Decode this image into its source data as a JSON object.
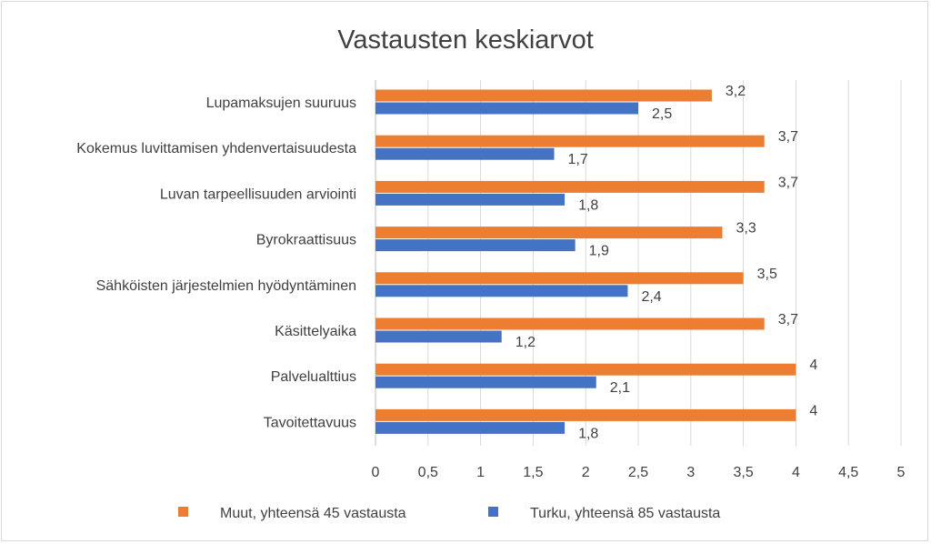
{
  "chart_data": {
    "type": "bar",
    "orientation": "horizontal",
    "title": "Vastausten keskiarvot",
    "categories": [
      "Lupamaksujen suuruus",
      "Kokemus luvittamisen yhdenvertaisuudesta",
      "Luvan tarpeellisuuden arviointi",
      "Byrokraattisuus",
      "Sähköisten järjestelmien hyödyntäminen",
      "Käsittelyaika",
      "Palvelualttius",
      "Tavoitettavuus"
    ],
    "series": [
      {
        "name": "Muut, yhteensä 45 vastausta",
        "color": "#ed7d31",
        "values": [
          3.2,
          3.7,
          3.7,
          3.3,
          3.5,
          3.7,
          4,
          4
        ],
        "labels": [
          "3,2",
          "3,7",
          "3,7",
          "3,3",
          "3,5",
          "3,7",
          "4",
          "4"
        ]
      },
      {
        "name": "Turku, yhteensä 85 vastausta",
        "color": "#4472c4",
        "values": [
          2.5,
          1.7,
          1.8,
          1.9,
          2.4,
          1.2,
          2.1,
          1.8
        ],
        "labels": [
          "2,5",
          "1,7",
          "1,8",
          "1,9",
          "2,4",
          "1,2",
          "2,1",
          "1,8"
        ]
      }
    ],
    "xlim": [
      0,
      5
    ],
    "xticks": [
      0,
      0.5,
      1,
      1.5,
      2,
      2.5,
      3,
      3.5,
      4,
      4.5,
      5
    ],
    "xtick_labels": [
      "0",
      "0,5",
      "1",
      "1,5",
      "2",
      "2,5",
      "3",
      "3,5",
      "4",
      "4,5",
      "5"
    ],
    "grid": true,
    "legend": "bottom",
    "xlabel": "",
    "ylabel": ""
  }
}
